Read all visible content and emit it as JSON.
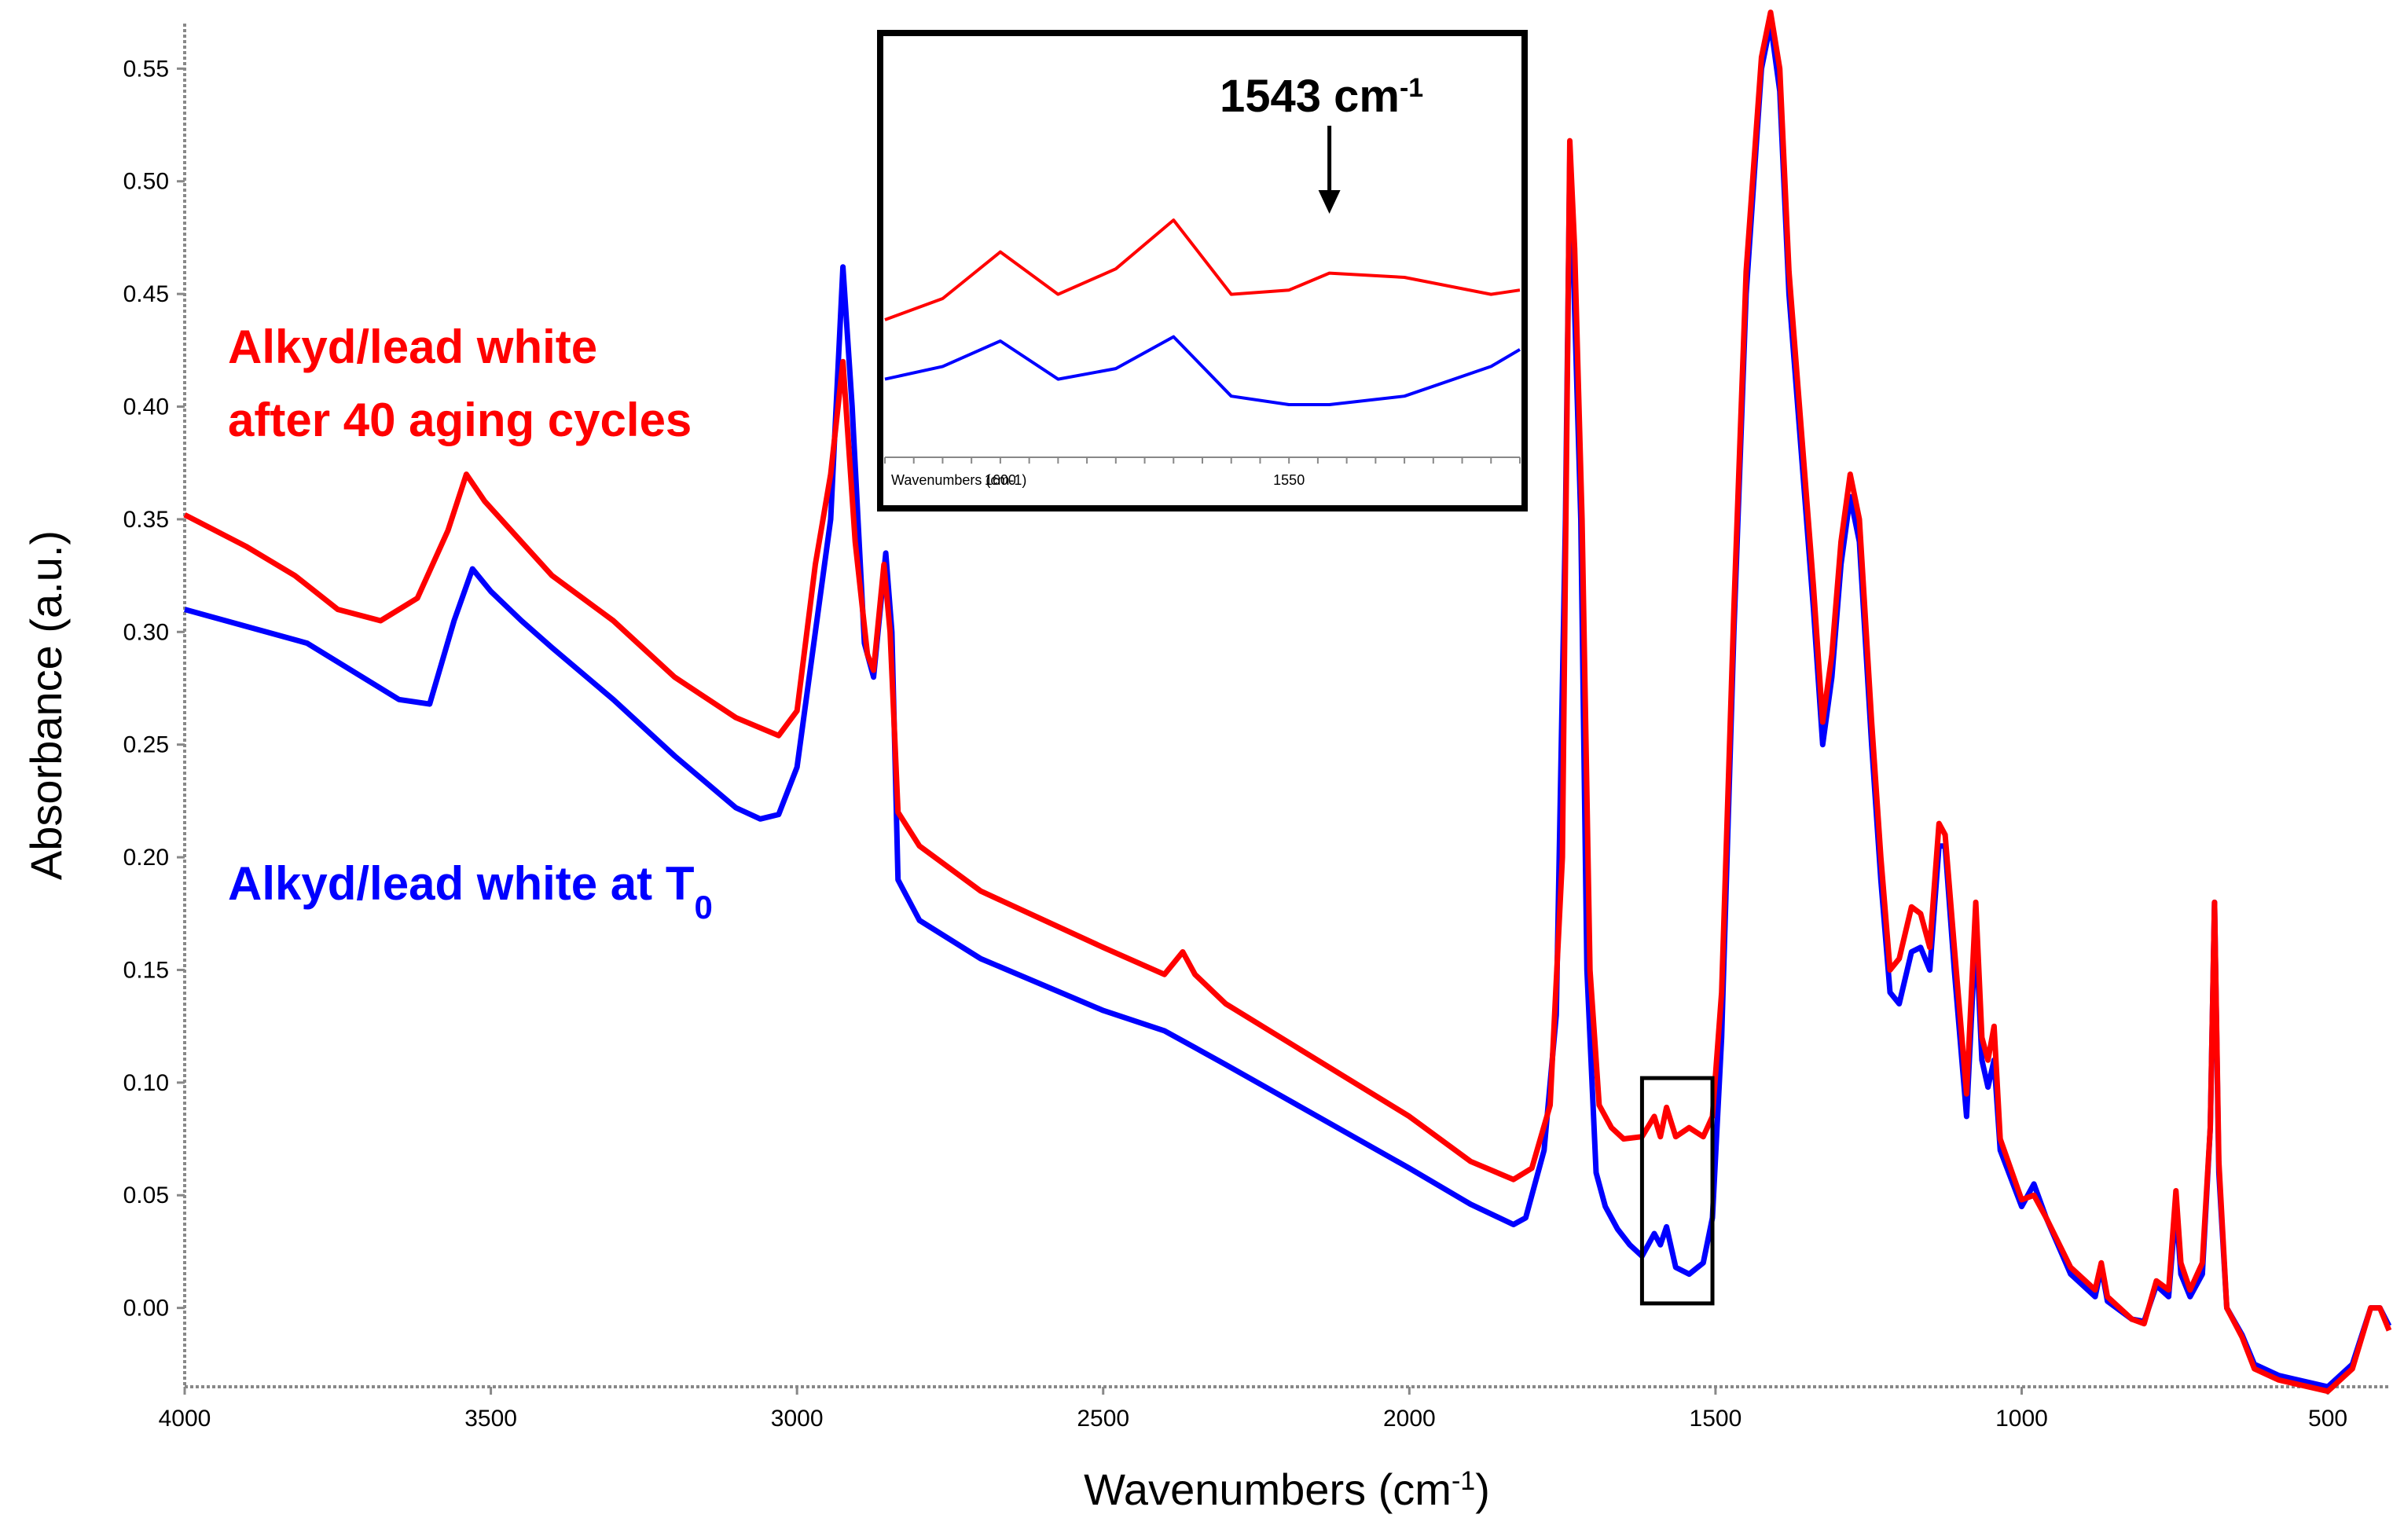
{
  "chart_data": {
    "type": "line",
    "title": "",
    "xlabel": "Wavenumbers (cm",
    "xlabel_sup": "-1",
    "xlabel_close": ")",
    "ylabel": "Absorbance (a.u.)",
    "xlim": [
      4000,
      400
    ],
    "ylim": [
      -0.035,
      0.57
    ],
    "x_ticks": [
      4000,
      3500,
      3000,
      2500,
      2000,
      1500,
      1000,
      500
    ],
    "y_ticks": [
      "0.00",
      "0.05",
      "0.10",
      "0.15",
      "0.20",
      "0.25",
      "0.30",
      "0.35",
      "0.40",
      "0.45",
      "0.50",
      "0.55"
    ],
    "series": [
      {
        "name": "Alkyd/lead white at T0",
        "color": "#0000ff",
        "points": [
          [
            4000,
            0.31
          ],
          [
            3800,
            0.295
          ],
          [
            3650,
            0.27
          ],
          [
            3600,
            0.268
          ],
          [
            3560,
            0.305
          ],
          [
            3530,
            0.328
          ],
          [
            3500,
            0.318
          ],
          [
            3450,
            0.305
          ],
          [
            3400,
            0.293
          ],
          [
            3300,
            0.27
          ],
          [
            3200,
            0.245
          ],
          [
            3100,
            0.222
          ],
          [
            3060,
            0.217
          ],
          [
            3030,
            0.219
          ],
          [
            3000,
            0.24
          ],
          [
            2970,
            0.3
          ],
          [
            2945,
            0.35
          ],
          [
            2925,
            0.462
          ],
          [
            2910,
            0.4
          ],
          [
            2890,
            0.295
          ],
          [
            2875,
            0.28
          ],
          [
            2855,
            0.335
          ],
          [
            2845,
            0.3
          ],
          [
            2835,
            0.19
          ],
          [
            2800,
            0.172
          ],
          [
            2700,
            0.155
          ],
          [
            2500,
            0.132
          ],
          [
            2400,
            0.123
          ],
          [
            2300,
            0.108
          ],
          [
            2000,
            0.062
          ],
          [
            1900,
            0.046
          ],
          [
            1830,
            0.037
          ],
          [
            1810,
            0.04
          ],
          [
            1780,
            0.07
          ],
          [
            1760,
            0.13
          ],
          [
            1745,
            0.35
          ],
          [
            1738,
            0.51
          ],
          [
            1732,
            0.46
          ],
          [
            1720,
            0.35
          ],
          [
            1710,
            0.15
          ],
          [
            1695,
            0.06
          ],
          [
            1680,
            0.045
          ],
          [
            1660,
            0.035
          ],
          [
            1640,
            0.028
          ],
          [
            1620,
            0.023
          ],
          [
            1600,
            0.033
          ],
          [
            1590,
            0.028
          ],
          [
            1580,
            0.036
          ],
          [
            1565,
            0.018
          ],
          [
            1543,
            0.015
          ],
          [
            1520,
            0.02
          ],
          [
            1505,
            0.04
          ],
          [
            1490,
            0.12
          ],
          [
            1470,
            0.3
          ],
          [
            1450,
            0.45
          ],
          [
            1425,
            0.55
          ],
          [
            1410,
            0.57
          ],
          [
            1395,
            0.54
          ],
          [
            1380,
            0.45
          ],
          [
            1360,
            0.38
          ],
          [
            1340,
            0.31
          ],
          [
            1325,
            0.25
          ],
          [
            1310,
            0.28
          ],
          [
            1295,
            0.33
          ],
          [
            1280,
            0.36
          ],
          [
            1265,
            0.34
          ],
          [
            1245,
            0.25
          ],
          [
            1230,
            0.19
          ],
          [
            1215,
            0.14
          ],
          [
            1200,
            0.135
          ],
          [
            1180,
            0.158
          ],
          [
            1165,
            0.16
          ],
          [
            1150,
            0.15
          ],
          [
            1135,
            0.205
          ],
          [
            1125,
            0.205
          ],
          [
            1110,
            0.15
          ],
          [
            1090,
            0.085
          ],
          [
            1075,
            0.168
          ],
          [
            1065,
            0.11
          ],
          [
            1055,
            0.098
          ],
          [
            1045,
            0.11
          ],
          [
            1035,
            0.07
          ],
          [
            1000,
            0.045
          ],
          [
            980,
            0.055
          ],
          [
            960,
            0.04
          ],
          [
            920,
            0.015
          ],
          [
            880,
            0.005
          ],
          [
            870,
            0.018
          ],
          [
            860,
            0.003
          ],
          [
            820,
            -0.005
          ],
          [
            800,
            -0.006
          ],
          [
            780,
            0.01
          ],
          [
            760,
            0.005
          ],
          [
            748,
            0.045
          ],
          [
            740,
            0.015
          ],
          [
            725,
            0.005
          ],
          [
            705,
            0.015
          ],
          [
            692,
            0.08
          ],
          [
            685,
            0.18
          ],
          [
            678,
            0.06
          ],
          [
            665,
            0.0
          ],
          [
            640,
            -0.012
          ],
          [
            620,
            -0.025
          ],
          [
            580,
            -0.03
          ],
          [
            500,
            -0.035
          ],
          [
            460,
            -0.025
          ],
          [
            430,
            0.0
          ],
          [
            415,
            0.0
          ],
          [
            400,
            -0.008
          ]
        ]
      },
      {
        "name": "Alkyd/lead white after 40 aging cycles",
        "color": "#ff0000",
        "points": [
          [
            4000,
            0.352
          ],
          [
            3900,
            0.338
          ],
          [
            3820,
            0.325
          ],
          [
            3750,
            0.31
          ],
          [
            3680,
            0.305
          ],
          [
            3620,
            0.315
          ],
          [
            3570,
            0.345
          ],
          [
            3540,
            0.37
          ],
          [
            3510,
            0.358
          ],
          [
            3450,
            0.34
          ],
          [
            3400,
            0.325
          ],
          [
            3300,
            0.305
          ],
          [
            3200,
            0.28
          ],
          [
            3100,
            0.262
          ],
          [
            3030,
            0.254
          ],
          [
            3000,
            0.265
          ],
          [
            2970,
            0.33
          ],
          [
            2945,
            0.37
          ],
          [
            2925,
            0.42
          ],
          [
            2905,
            0.34
          ],
          [
            2885,
            0.29
          ],
          [
            2875,
            0.283
          ],
          [
            2858,
            0.33
          ],
          [
            2848,
            0.3
          ],
          [
            2835,
            0.22
          ],
          [
            2800,
            0.205
          ],
          [
            2700,
            0.185
          ],
          [
            2500,
            0.16
          ],
          [
            2400,
            0.148
          ],
          [
            2370,
            0.158
          ],
          [
            2350,
            0.148
          ],
          [
            2300,
            0.135
          ],
          [
            2000,
            0.085
          ],
          [
            1900,
            0.065
          ],
          [
            1830,
            0.057
          ],
          [
            1800,
            0.062
          ],
          [
            1770,
            0.09
          ],
          [
            1750,
            0.2
          ],
          [
            1738,
            0.518
          ],
          [
            1730,
            0.47
          ],
          [
            1718,
            0.35
          ],
          [
            1705,
            0.15
          ],
          [
            1690,
            0.09
          ],
          [
            1670,
            0.08
          ],
          [
            1650,
            0.075
          ],
          [
            1620,
            0.076
          ],
          [
            1600,
            0.085
          ],
          [
            1590,
            0.076
          ],
          [
            1580,
            0.089
          ],
          [
            1565,
            0.076
          ],
          [
            1543,
            0.08
          ],
          [
            1520,
            0.076
          ],
          [
            1505,
            0.085
          ],
          [
            1490,
            0.14
          ],
          [
            1470,
            0.31
          ],
          [
            1450,
            0.46
          ],
          [
            1425,
            0.555
          ],
          [
            1410,
            0.575
          ],
          [
            1395,
            0.55
          ],
          [
            1380,
            0.46
          ],
          [
            1360,
            0.39
          ],
          [
            1340,
            0.32
          ],
          [
            1325,
            0.26
          ],
          [
            1310,
            0.29
          ],
          [
            1295,
            0.34
          ],
          [
            1280,
            0.37
          ],
          [
            1265,
            0.35
          ],
          [
            1245,
            0.26
          ],
          [
            1230,
            0.2
          ],
          [
            1215,
            0.15
          ],
          [
            1200,
            0.155
          ],
          [
            1180,
            0.178
          ],
          [
            1165,
            0.175
          ],
          [
            1150,
            0.16
          ],
          [
            1135,
            0.215
          ],
          [
            1125,
            0.21
          ],
          [
            1110,
            0.16
          ],
          [
            1090,
            0.095
          ],
          [
            1075,
            0.18
          ],
          [
            1065,
            0.12
          ],
          [
            1055,
            0.11
          ],
          [
            1045,
            0.125
          ],
          [
            1035,
            0.075
          ],
          [
            1000,
            0.048
          ],
          [
            980,
            0.05
          ],
          [
            960,
            0.04
          ],
          [
            920,
            0.018
          ],
          [
            880,
            0.008
          ],
          [
            870,
            0.02
          ],
          [
            860,
            0.005
          ],
          [
            820,
            -0.005
          ],
          [
            800,
            -0.007
          ],
          [
            780,
            0.012
          ],
          [
            760,
            0.008
          ],
          [
            748,
            0.052
          ],
          [
            740,
            0.02
          ],
          [
            725,
            0.008
          ],
          [
            705,
            0.02
          ],
          [
            692,
            0.08
          ],
          [
            685,
            0.18
          ],
          [
            678,
            0.065
          ],
          [
            665,
            0.0
          ],
          [
            640,
            -0.013
          ],
          [
            620,
            -0.027
          ],
          [
            580,
            -0.032
          ],
          [
            500,
            -0.037
          ],
          [
            460,
            -0.027
          ],
          [
            430,
            0.0
          ],
          [
            415,
            0.0
          ],
          [
            400,
            -0.01
          ]
        ]
      }
    ],
    "legend": {
      "after_line1": "Alkyd/lead white",
      "after_line2": "after 40 aging cycles",
      "t0_text": "Alkyd/lead white at T",
      "t0_sub": "0"
    },
    "highlight_box_x": [
      1620,
      1505
    ],
    "highlight_box_y": [
      0.002,
      0.102
    ],
    "inset": {
      "xlim": [
        1620,
        1510
      ],
      "x_ticks": [
        "1600",
        "1550"
      ],
      "x_tick_values": [
        1600,
        1550
      ],
      "xlabel": "Wavenumbers (cm-1)",
      "annotation": "1543 cm",
      "annotation_sup": "-1",
      "annotation_x": 1543,
      "red_points": [
        [
          1620,
          0.5
        ],
        [
          1610,
          0.6
        ],
        [
          1600,
          0.82
        ],
        [
          1590,
          0.62
        ],
        [
          1580,
          0.74
        ],
        [
          1570,
          0.97
        ],
        [
          1560,
          0.62
        ],
        [
          1550,
          0.64
        ],
        [
          1543,
          0.72
        ],
        [
          1530,
          0.7
        ],
        [
          1515,
          0.62
        ],
        [
          1510,
          0.64
        ]
      ],
      "blue_points": [
        [
          1620,
          0.22
        ],
        [
          1610,
          0.28
        ],
        [
          1600,
          0.4
        ],
        [
          1590,
          0.22
        ],
        [
          1580,
          0.27
        ],
        [
          1570,
          0.42
        ],
        [
          1560,
          0.14
        ],
        [
          1550,
          0.1
        ],
        [
          1543,
          0.1
        ],
        [
          1530,
          0.14
        ],
        [
          1515,
          0.28
        ],
        [
          1510,
          0.36
        ]
      ]
    }
  }
}
